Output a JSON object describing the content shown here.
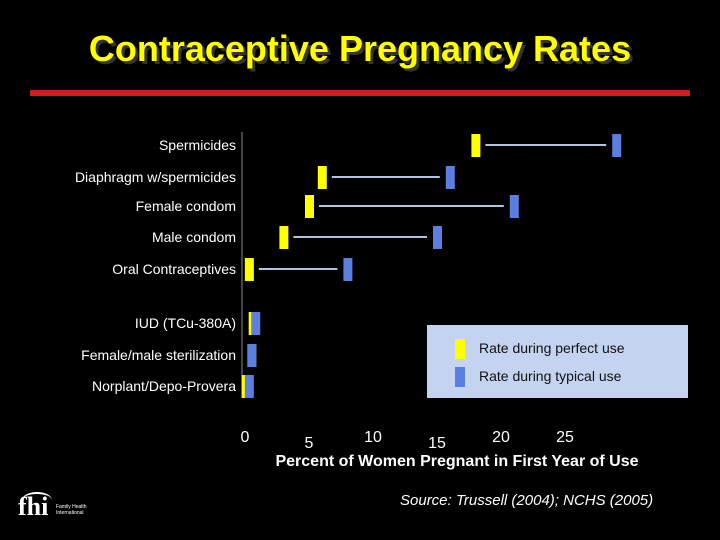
{
  "title": "Contraceptive Pregnancy Rates",
  "source": "Source:  Trussell (2004); NCHS (2005)",
  "logo": {
    "mark": "fhi",
    "text": "Family Health International"
  },
  "colors": {
    "background": "#000000",
    "title": "#ffff00",
    "rule": "#cc1f1f",
    "perfect": "#ffff00",
    "typical": "#5a7fe0",
    "connector": "#b4c4dc",
    "legend_bg": "#c4d4f0"
  },
  "chart_data": {
    "type": "range",
    "title": "Contraceptive Pregnancy Rates",
    "xlabel": "Percent of Women Pregnant in First Year of Use",
    "ylabel": "",
    "xlim": [
      0,
      25
    ],
    "xticks": [
      "0",
      "5",
      "10",
      "15",
      "20",
      "25"
    ],
    "legend": {
      "position": "right",
      "perfect": "Rate during perfect use",
      "typical": "Rate during typical use"
    },
    "categories": [
      "Spermicides",
      "Diaphragm w/spermicides",
      "Female condom",
      "Male condom",
      "Oral Contraceptives",
      "IUD (TCu-380A)",
      "Female/male sterilization",
      "Norplant/Depo-Provera"
    ],
    "series": [
      {
        "name": "Rate during perfect use",
        "values": [
          18,
          6,
          5,
          3,
          0.3,
          0.6,
          0.5,
          0.05
        ]
      },
      {
        "name": "Rate during typical use",
        "values": [
          29,
          16,
          21,
          15,
          8,
          0.8,
          0.5,
          0.3
        ]
      }
    ]
  }
}
